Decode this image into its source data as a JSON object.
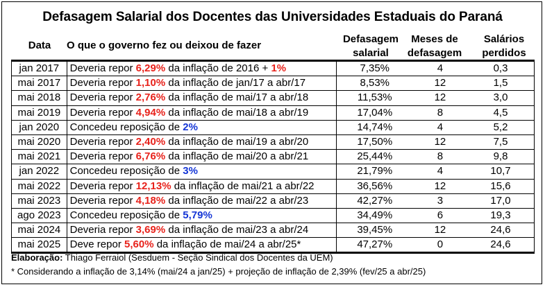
{
  "title": "Defasagem Salarial dos Docentes das Universidades Estaduais do Paraná",
  "headers": {
    "date": "Data",
    "what": "O que o governo fez ou deixou de fazer",
    "def1": "Defasagem",
    "def2": "salarial",
    "mes1": "Meses de",
    "mes2": "defasagem",
    "sal1": "Salários",
    "sal2": "perdidos"
  },
  "rows": [
    {
      "date": "jan 2017",
      "a": "Deveria repor ",
      "p1": "6,29%",
      "b": " da inflação de 2016 + ",
      "p2": "1%",
      "c": "",
      "color": "red",
      "def": "7,35%",
      "mes": "4",
      "sal": "0,3"
    },
    {
      "date": "mai 2017",
      "a": "Deveria repor ",
      "p1": "1,10%",
      "b": " da inflação de jan/17 a abr/17",
      "p2": "",
      "c": "",
      "color": "red",
      "def": "8,53%",
      "mes": "12",
      "sal": "1,5"
    },
    {
      "date": "mai 2018",
      "a": "Deveria repor ",
      "p1": "2,76%",
      "b": " da inflação de mai/17 a abr/18",
      "p2": "",
      "c": "",
      "color": "red",
      "def": "11,53%",
      "mes": "12",
      "sal": "3,0"
    },
    {
      "date": "mai 2019",
      "a": "Deveria repor ",
      "p1": "4,94%",
      "b": " da inflação de mai/18 a abr/19",
      "p2": "",
      "c": "",
      "color": "red",
      "def": "17,04%",
      "mes": "8",
      "sal": "4,5"
    },
    {
      "date": "jan 2020",
      "a": "Concedeu reposição de ",
      "p1": "2%",
      "b": "",
      "p2": "",
      "c": "",
      "color": "blue",
      "def": "14,74%",
      "mes": "4",
      "sal": "5,2"
    },
    {
      "date": "mai 2020",
      "a": "Deveria repor ",
      "p1": "2,40%",
      "b": " da inflação de mai/19 a abr/20",
      "p2": "",
      "c": "",
      "color": "red",
      "def": "17,50%",
      "mes": "12",
      "sal": "7,5"
    },
    {
      "date": "mai 2021",
      "a": "Deveria repor ",
      "p1": "6,76%",
      "b": " da inflação de mai/20 a abr/21",
      "p2": "",
      "c": "",
      "color": "red",
      "def": "25,44%",
      "mes": "8",
      "sal": "9,8"
    },
    {
      "date": "jan 2022",
      "a": "Concedeu reposição de ",
      "p1": "3%",
      "b": "",
      "p2": "",
      "c": "",
      "color": "blue",
      "def": "21,79%",
      "mes": "4",
      "sal": "10,7"
    },
    {
      "date": "mai 2022",
      "a": "Deveria repor ",
      "p1": "12,13%",
      "b": " da inflação de mai/21 a abr/22",
      "p2": "",
      "c": "",
      "color": "red",
      "def": "36,56%",
      "mes": "12",
      "sal": "15,6"
    },
    {
      "date": "mai 2023",
      "a": "Deveria repor ",
      "p1": "4,18%",
      "b": " da inflação de mai/22 a abr/23",
      "p2": "",
      "c": "",
      "color": "red",
      "def": "42,27%",
      "mes": "3",
      "sal": "17,0"
    },
    {
      "date": "ago 2023",
      "a": "Concedeu reposição de ",
      "p1": "5,79%",
      "b": "",
      "p2": "",
      "c": "",
      "color": "blue",
      "def": "34,49%",
      "mes": "6",
      "sal": "19,3"
    },
    {
      "date": "mai 2024",
      "a": "Deveria repor ",
      "p1": "3,69%",
      "b": " da inflação de mai/23 a abr/24",
      "p2": "",
      "c": "",
      "color": "red",
      "def": "39,45%",
      "mes": "12",
      "sal": "24,6"
    },
    {
      "date": "mai 2025",
      "a": "Deve repor ",
      "p1": "5,60%",
      "b": " da inflação de mai/24 a abr/25*",
      "p2": "",
      "c": "",
      "color": "red",
      "def": "47,27%",
      "mes": "0",
      "sal": "24,6"
    }
  ],
  "footer": {
    "label": "Elaboração:",
    "text": " Thiago Ferraiol (Sesduem - Seção Sindical dos Docentes da UEM)",
    "note": "* Considerando a inflação de 3,14% (mai/24 a jan/25) + projeção de inflação de 2,39% (fev/25 a abr/25)"
  },
  "colors": {
    "red": "#e8221b",
    "blue": "#1536d6"
  }
}
